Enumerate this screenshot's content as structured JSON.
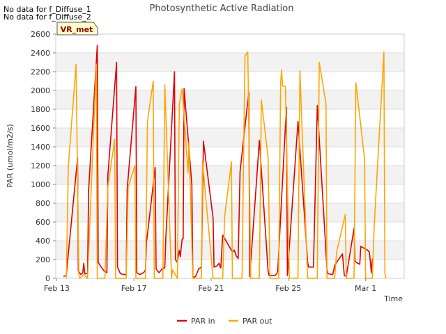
{
  "header": {
    "no_data_lines": [
      "No data for f_Diffuse_1",
      "No data for f_Diffuse_2"
    ]
  },
  "chart_data": {
    "type": "line",
    "title": "Photosynthetic Active Radiation",
    "xlabel": "Time",
    "ylabel": "PAR (umol/m2/s)",
    "site_badge": "VR_met",
    "x_unit": "days since Feb 13",
    "xlim": [
      -0.05,
      18.0
    ],
    "ylim": [
      0,
      2600
    ],
    "yticks": [
      0,
      200,
      400,
      600,
      800,
      1000,
      1200,
      1400,
      1600,
      1800,
      2000,
      2200,
      2400,
      2600
    ],
    "xticks": [
      {
        "x": 0,
        "label": "Feb 13"
      },
      {
        "x": 4,
        "label": "Feb 17"
      },
      {
        "x": 8,
        "label": "Feb 21"
      },
      {
        "x": 12,
        "label": "Feb 25"
      },
      {
        "x": 16,
        "label": "Mar 1"
      }
    ],
    "grid": true,
    "legend_position": "bottom",
    "series": [
      {
        "name": "PAR in",
        "color": "#dd0000",
        "points": [
          [
            0.35,
            20
          ],
          [
            0.5,
            30
          ],
          [
            0.6,
            260
          ],
          [
            1.08,
            1280
          ],
          [
            1.12,
            80
          ],
          [
            1.25,
            40
          ],
          [
            1.35,
            60
          ],
          [
            1.4,
            160
          ],
          [
            1.45,
            50
          ],
          [
            1.6,
            50
          ],
          [
            1.65,
            930
          ],
          [
            2.1,
            2480
          ],
          [
            2.15,
            170
          ],
          [
            2.3,
            120
          ],
          [
            2.45,
            80
          ],
          [
            2.6,
            60
          ],
          [
            2.65,
            1100
          ],
          [
            3.1,
            2300
          ],
          [
            3.15,
            120
          ],
          [
            3.3,
            50
          ],
          [
            3.5,
            40
          ],
          [
            3.6,
            40
          ],
          [
            3.65,
            950
          ],
          [
            4.1,
            2040
          ],
          [
            4.15,
            60
          ],
          [
            4.3,
            40
          ],
          [
            4.5,
            60
          ],
          [
            4.6,
            90
          ],
          [
            4.65,
            380
          ],
          [
            5.1,
            1180
          ],
          [
            5.15,
            100
          ],
          [
            5.3,
            60
          ],
          [
            5.5,
            110
          ],
          [
            5.6,
            110
          ],
          [
            5.65,
            420
          ],
          [
            6.1,
            2200
          ],
          [
            6.15,
            200
          ],
          [
            6.25,
            170
          ],
          [
            6.35,
            300
          ],
          [
            6.4,
            230
          ],
          [
            6.5,
            420
          ],
          [
            6.55,
            420
          ],
          [
            6.6,
            2020
          ],
          [
            7.0,
            1000
          ],
          [
            7.05,
            10
          ],
          [
            7.2,
            20
          ],
          [
            7.35,
            100
          ],
          [
            7.5,
            120
          ],
          [
            7.6,
            1460
          ],
          [
            8.1,
            640
          ],
          [
            8.15,
            120
          ],
          [
            8.3,
            130
          ],
          [
            8.4,
            160
          ],
          [
            8.5,
            110
          ],
          [
            8.6,
            460
          ],
          [
            9.1,
            280
          ],
          [
            9.2,
            300
          ],
          [
            9.3,
            240
          ],
          [
            9.4,
            210
          ],
          [
            9.5,
            1140
          ],
          [
            9.95,
            1980
          ],
          [
            10.0,
            20
          ],
          [
            10.5,
            1470
          ],
          [
            10.95,
            80
          ],
          [
            11.0,
            30
          ],
          [
            11.3,
            30
          ],
          [
            11.4,
            50
          ],
          [
            11.45,
            80
          ],
          [
            11.9,
            1820
          ],
          [
            11.95,
            30
          ],
          [
            12.5,
            1670
          ],
          [
            13.0,
            170
          ],
          [
            13.05,
            120
          ],
          [
            13.3,
            120
          ],
          [
            13.5,
            1840
          ],
          [
            14.0,
            100
          ],
          [
            14.05,
            50
          ],
          [
            14.3,
            40
          ],
          [
            14.4,
            140
          ],
          [
            14.8,
            260
          ],
          [
            14.9,
            30
          ],
          [
            15.0,
            20
          ],
          [
            15.4,
            530
          ],
          [
            15.45,
            180
          ],
          [
            15.6,
            160
          ],
          [
            15.7,
            150
          ],
          [
            15.75,
            340
          ],
          [
            16.0,
            310
          ],
          [
            16.1,
            300
          ],
          [
            16.2,
            280
          ],
          [
            16.3,
            60
          ],
          [
            16.35,
            200
          ],
          [
            16.4,
            210
          ]
        ]
      },
      {
        "name": "PAR out",
        "color": "#ffa500",
        "points": [
          [
            0.5,
            0
          ],
          [
            0.6,
            1180
          ],
          [
            1.0,
            2280
          ],
          [
            1.15,
            30
          ],
          [
            1.2,
            0
          ],
          [
            1.4,
            40
          ],
          [
            1.6,
            0
          ],
          [
            2.05,
            2280
          ],
          [
            2.1,
            0
          ],
          [
            2.5,
            0
          ],
          [
            2.65,
            970
          ],
          [
            3.0,
            1480
          ],
          [
            3.05,
            0
          ],
          [
            3.6,
            0
          ],
          [
            3.7,
            970
          ],
          [
            4.05,
            1200
          ],
          [
            4.1,
            0
          ],
          [
            4.6,
            0
          ],
          [
            4.7,
            1670
          ],
          [
            5.0,
            2100
          ],
          [
            5.05,
            0
          ],
          [
            5.5,
            0
          ],
          [
            5.6,
            2060
          ],
          [
            5.95,
            0
          ],
          [
            6.0,
            90
          ],
          [
            6.25,
            0
          ],
          [
            6.35,
            1850
          ],
          [
            6.5,
            2020
          ],
          [
            6.8,
            1120
          ],
          [
            6.85,
            1450
          ],
          [
            7.05,
            0
          ],
          [
            7.5,
            0
          ],
          [
            7.55,
            1250
          ],
          [
            8.1,
            0
          ],
          [
            8.6,
            0
          ],
          [
            8.7,
            660
          ],
          [
            9.05,
            1240
          ],
          [
            9.1,
            0
          ],
          [
            9.6,
            0
          ],
          [
            9.75,
            2370
          ],
          [
            9.9,
            2410
          ],
          [
            10.05,
            0
          ],
          [
            10.5,
            0
          ],
          [
            10.6,
            1900
          ],
          [
            10.95,
            1290
          ],
          [
            11.05,
            0
          ],
          [
            11.5,
            0
          ],
          [
            11.6,
            2070
          ],
          [
            11.65,
            2220
          ],
          [
            11.7,
            2050
          ],
          [
            11.85,
            2040
          ],
          [
            12.05,
            0
          ],
          [
            12.5,
            0
          ],
          [
            12.6,
            2210
          ],
          [
            13.0,
            0
          ],
          [
            13.5,
            0
          ],
          [
            13.6,
            2300
          ],
          [
            13.95,
            1860
          ],
          [
            14.0,
            0
          ],
          [
            14.4,
            0
          ],
          [
            14.5,
            280
          ],
          [
            14.95,
            680
          ],
          [
            15.0,
            0
          ],
          [
            15.4,
            0
          ],
          [
            15.5,
            2080
          ],
          [
            15.95,
            1270
          ],
          [
            16.0,
            0
          ],
          [
            16.35,
            0
          ],
          [
            16.45,
            580
          ],
          [
            16.95,
            2410
          ],
          [
            17.0,
            50
          ],
          [
            17.05,
            0
          ]
        ]
      }
    ]
  }
}
